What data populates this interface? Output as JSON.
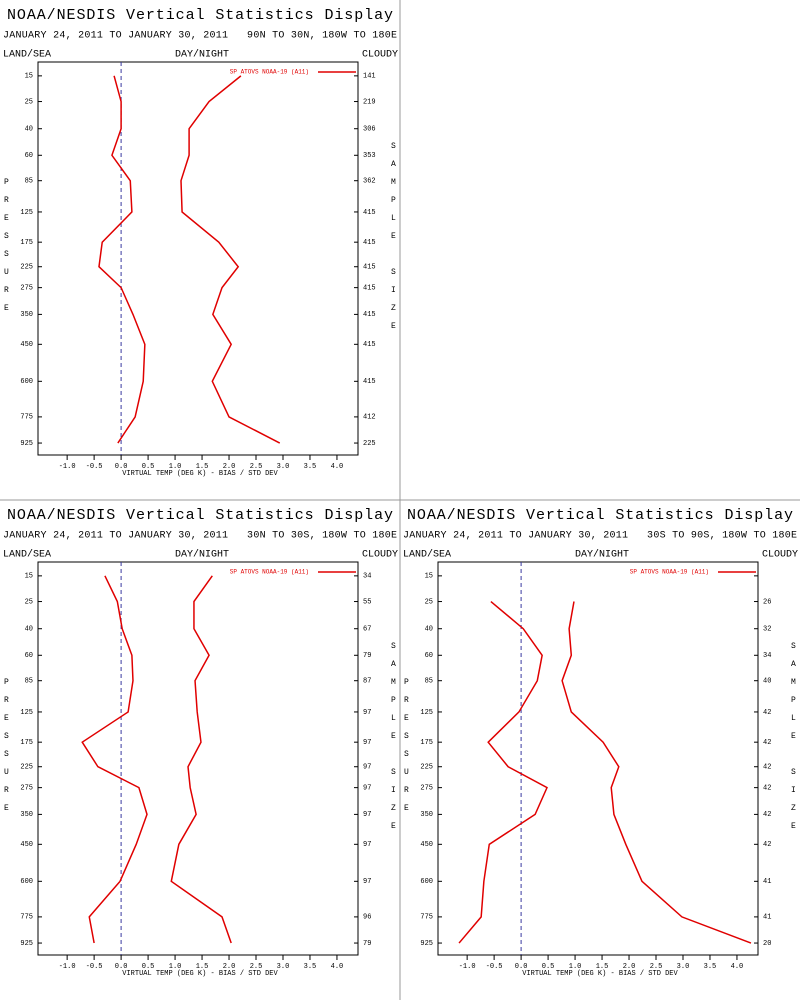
{
  "chart_data": [
    {
      "type": "line",
      "title": "NOAA/NESDIS Vertical Statistics Display",
      "subtitle": "JANUARY 24, 2011 TO JANUARY 30, 2011   90N TO 30N, 180W TO 180E",
      "left_header": "LAND/SEA",
      "center_header": "DAY/NIGHT",
      "right_header": "CLOUDY",
      "x_label": "VIRTUAL TEMP (DEG K) - BIAS / STD DEV",
      "y_label": "PRESSURE",
      "y2_label": "SAMPLE SIZE",
      "levels": [
        15,
        25,
        40,
        60,
        85,
        125,
        175,
        225,
        275,
        350,
        450,
        600,
        775,
        925
      ],
      "sample_size": [
        141,
        219,
        306,
        353,
        362,
        415,
        415,
        415,
        415,
        415,
        415,
        415,
        412,
        225
      ],
      "series": [
        {
          "name": "SP ATOVS NOAA-19 (A11)",
          "color": "#e00000",
          "values": [
            -0.13,
            0.0,
            0.0,
            -0.17,
            0.17,
            0.2,
            -0.35,
            -0.41,
            0.0,
            0.22,
            0.44,
            0.41,
            0.26,
            -0.06
          ],
          "std_dev": [
            2.22,
            1.63,
            1.26,
            1.26,
            1.11,
            1.13,
            1.81,
            2.17,
            1.87,
            1.7,
            2.04,
            1.69,
            2.0,
            2.94
          ]
        }
      ],
      "xlim": [
        -1.54,
        4.39
      ],
      "ylim": [
        1000,
        11
      ],
      "zero_line": true,
      "xticks": [
        {
          "value": -1,
          "label": "-1.0"
        },
        -0.5,
        {
          "value": 0,
          "label": "0.0"
        },
        0.5,
        {
          "value": 1,
          "label": "1.0"
        },
        1.5,
        {
          "value": 2,
          "label": "2.0"
        },
        2.5,
        {
          "value": 3,
          "label": "3.0"
        },
        3.5,
        {
          "value": 4,
          "label": "4.0"
        }
      ]
    },
    {
      "type": "line",
      "title": "NOAA/NESDIS Vertical Statistics Display",
      "subtitle": "JANUARY 24, 2011 TO JANUARY 30, 2011   30N TO 30S, 180W TO 180E",
      "left_header": "LAND/SEA",
      "center_header": "DAY/NIGHT",
      "right_header": "CLOUDY",
      "x_label": "VIRTUAL TEMP (DEG K) - BIAS / STD DEV",
      "y_label": "PRESSURE",
      "y2_label": "SAMPLE SIZE",
      "levels": [
        15,
        25,
        40,
        60,
        85,
        125,
        175,
        225,
        275,
        350,
        450,
        600,
        775,
        925
      ],
      "sample_size": [
        34,
        55,
        67,
        79,
        87,
        97,
        97,
        97,
        97,
        97,
        97,
        97,
        96,
        79
      ],
      "series": [
        {
          "name": "SP ATOVS NOAA-19 (A11)",
          "color": "#e00000",
          "values": [
            -0.3,
            -0.07,
            0.02,
            0.2,
            0.22,
            0.13,
            -0.72,
            -0.43,
            0.33,
            0.48,
            0.28,
            -0.02,
            -0.59,
            -0.5
          ],
          "std_dev": [
            1.69,
            1.35,
            1.35,
            1.63,
            1.37,
            1.41,
            1.48,
            1.24,
            1.28,
            1.39,
            1.07,
            0.93,
            1.87,
            2.04
          ]
        }
      ],
      "xlim": [
        -1.54,
        4.39
      ],
      "ylim": [
        1000,
        11
      ],
      "zero_line": true,
      "xticks": [
        {
          "value": -1,
          "label": "-1.0"
        },
        -0.5,
        {
          "value": 0,
          "label": "0.0"
        },
        0.5,
        {
          "value": 1,
          "label": "1.0"
        },
        1.5,
        {
          "value": 2,
          "label": "2.0"
        },
        2.5,
        {
          "value": 3,
          "label": "3.0"
        },
        3.5,
        {
          "value": 4,
          "label": "4.0"
        }
      ]
    },
    {
      "type": "line",
      "title": "NOAA/NESDIS Vertical Statistics Display",
      "subtitle": "JANUARY 24, 2011 TO JANUARY 30, 2011   30S TO 90S, 180W TO 180E",
      "left_header": "LAND/SEA",
      "center_header": "DAY/NIGHT",
      "right_header": "CLOUDY",
      "x_label": "VIRTUAL TEMP (DEG K) - BIAS / STD DEV",
      "y_label": "PRESSURE",
      "y2_label": "SAMPLE SIZE",
      "levels": [
        15,
        25,
        40,
        60,
        85,
        125,
        175,
        225,
        275,
        350,
        450,
        600,
        775,
        925
      ],
      "sample_size": [
        null,
        26,
        32,
        34,
        40,
        42,
        42,
        42,
        42,
        42,
        42,
        41,
        41,
        20
      ],
      "series": [
        {
          "name": "SP ATOVS NOAA-19 (A11)",
          "color": "#e00000",
          "values": [
            null,
            -0.56,
            0.04,
            0.39,
            0.3,
            -0.04,
            -0.61,
            -0.24,
            0.48,
            0.26,
            -0.59,
            -0.69,
            -0.74,
            -1.15
          ],
          "std_dev": [
            null,
            0.98,
            0.89,
            0.93,
            0.76,
            0.93,
            1.52,
            1.81,
            1.67,
            1.72,
            1.94,
            2.24,
            2.98,
            4.26
          ]
        }
      ],
      "xlim": [
        -1.54,
        4.39
      ],
      "ylim": [
        1000,
        11
      ],
      "zero_line": true,
      "xticks": [
        {
          "value": -1,
          "label": "-1.0"
        },
        -0.5,
        {
          "value": 0,
          "label": "0.0"
        },
        0.5,
        {
          "value": 1,
          "label": "1.0"
        },
        1.5,
        {
          "value": 2,
          "label": "2.0"
        },
        2.5,
        {
          "value": 3,
          "label": "3.0"
        },
        3.5,
        {
          "value": 4,
          "label": "4.0"
        }
      ]
    }
  ]
}
